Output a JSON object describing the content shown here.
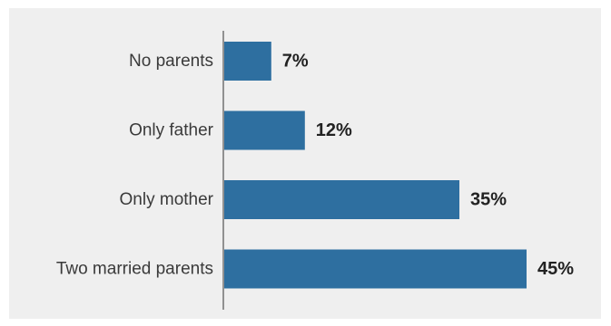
{
  "chart_data": {
    "type": "bar",
    "orientation": "horizontal",
    "categories": [
      "No parents",
      "Only father",
      "Only mother",
      "Two married parents"
    ],
    "values": [
      7,
      12,
      35,
      45
    ],
    "value_labels": [
      "7%",
      "12%",
      "35%",
      "45%"
    ],
    "xlim": [
      0,
      45
    ],
    "grid": false,
    "colors": {
      "bar": "#2e6fa0",
      "background": "#efefef",
      "axis": "#333333"
    }
  }
}
